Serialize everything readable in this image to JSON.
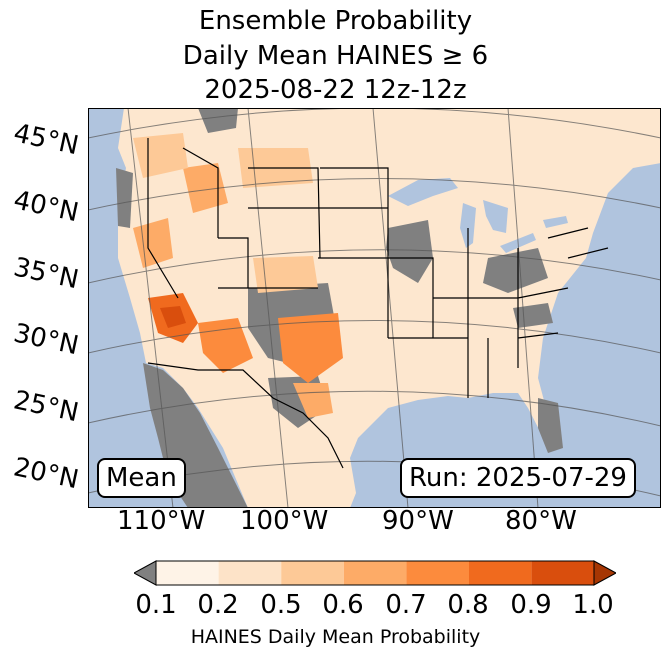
{
  "title": {
    "line1": "Ensemble Probability",
    "line2": "Daily Mean HAINES ≥ 6",
    "line3": "2025-08-22 12z-12z"
  },
  "map": {
    "lat_labels": [
      "45°N",
      "40°N",
      "35°N",
      "30°N",
      "25°N",
      "20°N"
    ],
    "lon_labels": [
      "110°W",
      "100°W",
      "90°W",
      "80°W"
    ],
    "mean_label": "Mean",
    "run_label": "Run: 2025-07-29",
    "colors": {
      "ocean": "#b0c4de",
      "missing": "#808080",
      "land_low": "#fde7cf"
    }
  },
  "colorbar": {
    "ticks": [
      "0.1",
      "0.2",
      "0.5",
      "0.6",
      "0.7",
      "0.8",
      "0.9",
      "1.0"
    ],
    "label": "HAINES Daily Mean Probability",
    "colors": [
      "#fef3e7",
      "#fde3c8",
      "#fdc997",
      "#fdab67",
      "#fc8b3d",
      "#f06a1e",
      "#d94e0d",
      "#a63603"
    ],
    "under_color": "#808080"
  }
}
